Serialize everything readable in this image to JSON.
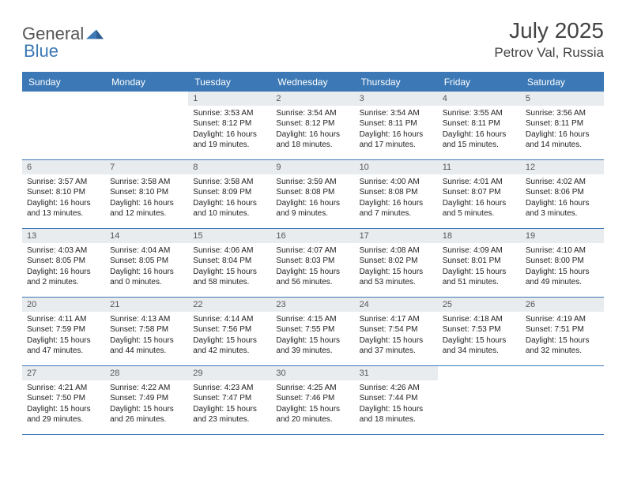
{
  "brand": {
    "part1": "General",
    "part2": "Blue"
  },
  "title": "July 2025",
  "location": "Petrov Val, Russia",
  "colors": {
    "accent": "#3b78b5",
    "dayHeaderBg": "#e9ecef",
    "text": "#222"
  },
  "dayNames": [
    "Sunday",
    "Monday",
    "Tuesday",
    "Wednesday",
    "Thursday",
    "Friday",
    "Saturday"
  ],
  "weeks": [
    [
      {
        "n": "",
        "sunrise": "",
        "sunset": "",
        "dl1": "",
        "dl2": ""
      },
      {
        "n": "",
        "sunrise": "",
        "sunset": "",
        "dl1": "",
        "dl2": ""
      },
      {
        "n": "1",
        "sunrise": "Sunrise: 3:53 AM",
        "sunset": "Sunset: 8:12 PM",
        "dl1": "Daylight: 16 hours",
        "dl2": "and 19 minutes."
      },
      {
        "n": "2",
        "sunrise": "Sunrise: 3:54 AM",
        "sunset": "Sunset: 8:12 PM",
        "dl1": "Daylight: 16 hours",
        "dl2": "and 18 minutes."
      },
      {
        "n": "3",
        "sunrise": "Sunrise: 3:54 AM",
        "sunset": "Sunset: 8:11 PM",
        "dl1": "Daylight: 16 hours",
        "dl2": "and 17 minutes."
      },
      {
        "n": "4",
        "sunrise": "Sunrise: 3:55 AM",
        "sunset": "Sunset: 8:11 PM",
        "dl1": "Daylight: 16 hours",
        "dl2": "and 15 minutes."
      },
      {
        "n": "5",
        "sunrise": "Sunrise: 3:56 AM",
        "sunset": "Sunset: 8:11 PM",
        "dl1": "Daylight: 16 hours",
        "dl2": "and 14 minutes."
      }
    ],
    [
      {
        "n": "6",
        "sunrise": "Sunrise: 3:57 AM",
        "sunset": "Sunset: 8:10 PM",
        "dl1": "Daylight: 16 hours",
        "dl2": "and 13 minutes."
      },
      {
        "n": "7",
        "sunrise": "Sunrise: 3:58 AM",
        "sunset": "Sunset: 8:10 PM",
        "dl1": "Daylight: 16 hours",
        "dl2": "and 12 minutes."
      },
      {
        "n": "8",
        "sunrise": "Sunrise: 3:58 AM",
        "sunset": "Sunset: 8:09 PM",
        "dl1": "Daylight: 16 hours",
        "dl2": "and 10 minutes."
      },
      {
        "n": "9",
        "sunrise": "Sunrise: 3:59 AM",
        "sunset": "Sunset: 8:08 PM",
        "dl1": "Daylight: 16 hours",
        "dl2": "and 9 minutes."
      },
      {
        "n": "10",
        "sunrise": "Sunrise: 4:00 AM",
        "sunset": "Sunset: 8:08 PM",
        "dl1": "Daylight: 16 hours",
        "dl2": "and 7 minutes."
      },
      {
        "n": "11",
        "sunrise": "Sunrise: 4:01 AM",
        "sunset": "Sunset: 8:07 PM",
        "dl1": "Daylight: 16 hours",
        "dl2": "and 5 minutes."
      },
      {
        "n": "12",
        "sunrise": "Sunrise: 4:02 AM",
        "sunset": "Sunset: 8:06 PM",
        "dl1": "Daylight: 16 hours",
        "dl2": "and 3 minutes."
      }
    ],
    [
      {
        "n": "13",
        "sunrise": "Sunrise: 4:03 AM",
        "sunset": "Sunset: 8:05 PM",
        "dl1": "Daylight: 16 hours",
        "dl2": "and 2 minutes."
      },
      {
        "n": "14",
        "sunrise": "Sunrise: 4:04 AM",
        "sunset": "Sunset: 8:05 PM",
        "dl1": "Daylight: 16 hours",
        "dl2": "and 0 minutes."
      },
      {
        "n": "15",
        "sunrise": "Sunrise: 4:06 AM",
        "sunset": "Sunset: 8:04 PM",
        "dl1": "Daylight: 15 hours",
        "dl2": "and 58 minutes."
      },
      {
        "n": "16",
        "sunrise": "Sunrise: 4:07 AM",
        "sunset": "Sunset: 8:03 PM",
        "dl1": "Daylight: 15 hours",
        "dl2": "and 56 minutes."
      },
      {
        "n": "17",
        "sunrise": "Sunrise: 4:08 AM",
        "sunset": "Sunset: 8:02 PM",
        "dl1": "Daylight: 15 hours",
        "dl2": "and 53 minutes."
      },
      {
        "n": "18",
        "sunrise": "Sunrise: 4:09 AM",
        "sunset": "Sunset: 8:01 PM",
        "dl1": "Daylight: 15 hours",
        "dl2": "and 51 minutes."
      },
      {
        "n": "19",
        "sunrise": "Sunrise: 4:10 AM",
        "sunset": "Sunset: 8:00 PM",
        "dl1": "Daylight: 15 hours",
        "dl2": "and 49 minutes."
      }
    ],
    [
      {
        "n": "20",
        "sunrise": "Sunrise: 4:11 AM",
        "sunset": "Sunset: 7:59 PM",
        "dl1": "Daylight: 15 hours",
        "dl2": "and 47 minutes."
      },
      {
        "n": "21",
        "sunrise": "Sunrise: 4:13 AM",
        "sunset": "Sunset: 7:58 PM",
        "dl1": "Daylight: 15 hours",
        "dl2": "and 44 minutes."
      },
      {
        "n": "22",
        "sunrise": "Sunrise: 4:14 AM",
        "sunset": "Sunset: 7:56 PM",
        "dl1": "Daylight: 15 hours",
        "dl2": "and 42 minutes."
      },
      {
        "n": "23",
        "sunrise": "Sunrise: 4:15 AM",
        "sunset": "Sunset: 7:55 PM",
        "dl1": "Daylight: 15 hours",
        "dl2": "and 39 minutes."
      },
      {
        "n": "24",
        "sunrise": "Sunrise: 4:17 AM",
        "sunset": "Sunset: 7:54 PM",
        "dl1": "Daylight: 15 hours",
        "dl2": "and 37 minutes."
      },
      {
        "n": "25",
        "sunrise": "Sunrise: 4:18 AM",
        "sunset": "Sunset: 7:53 PM",
        "dl1": "Daylight: 15 hours",
        "dl2": "and 34 minutes."
      },
      {
        "n": "26",
        "sunrise": "Sunrise: 4:19 AM",
        "sunset": "Sunset: 7:51 PM",
        "dl1": "Daylight: 15 hours",
        "dl2": "and 32 minutes."
      }
    ],
    [
      {
        "n": "27",
        "sunrise": "Sunrise: 4:21 AM",
        "sunset": "Sunset: 7:50 PM",
        "dl1": "Daylight: 15 hours",
        "dl2": "and 29 minutes."
      },
      {
        "n": "28",
        "sunrise": "Sunrise: 4:22 AM",
        "sunset": "Sunset: 7:49 PM",
        "dl1": "Daylight: 15 hours",
        "dl2": "and 26 minutes."
      },
      {
        "n": "29",
        "sunrise": "Sunrise: 4:23 AM",
        "sunset": "Sunset: 7:47 PM",
        "dl1": "Daylight: 15 hours",
        "dl2": "and 23 minutes."
      },
      {
        "n": "30",
        "sunrise": "Sunrise: 4:25 AM",
        "sunset": "Sunset: 7:46 PM",
        "dl1": "Daylight: 15 hours",
        "dl2": "and 20 minutes."
      },
      {
        "n": "31",
        "sunrise": "Sunrise: 4:26 AM",
        "sunset": "Sunset: 7:44 PM",
        "dl1": "Daylight: 15 hours",
        "dl2": "and 18 minutes."
      },
      {
        "n": "",
        "sunrise": "",
        "sunset": "",
        "dl1": "",
        "dl2": ""
      },
      {
        "n": "",
        "sunrise": "",
        "sunset": "",
        "dl1": "",
        "dl2": ""
      }
    ]
  ]
}
